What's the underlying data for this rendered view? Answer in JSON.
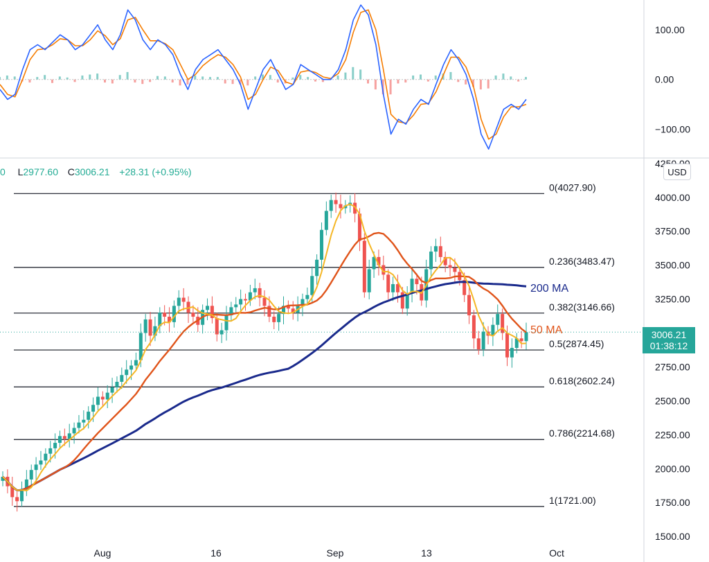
{
  "ohlc_bar": {
    "open_tail": "0",
    "low_label": "L",
    "low_value": "2977.60",
    "close_label": "C",
    "close_value": "3006.21",
    "change": "+28.31",
    "change_pct": "(+0.95%)"
  },
  "currency_button": "USD",
  "last_price": {
    "value": "3006.21",
    "countdown": "01:38:12"
  },
  "colors": {
    "fib_line": "#131722",
    "ma200": "#1a2a8c",
    "ma50": "#e0541a",
    "short_ma": "#f5b625",
    "up": "#26a69a",
    "down": "#ef5350",
    "osc_fast": "#2962ff",
    "osc_slow": "#f57c00",
    "hist_pos": "#26a69a",
    "hist_neg": "#ef5350",
    "grid": "#e0e3eb"
  },
  "chart_data": [
    {
      "type": "line",
      "panel": "oscillator",
      "y_ticks": [
        "100.00",
        "0.00",
        "−100.00"
      ],
      "y_tick_values": [
        100,
        0,
        -100
      ],
      "ylim": [
        -158,
        160
      ],
      "series": [
        {
          "values": [
            -20,
            -40,
            -30,
            20,
            60,
            70,
            60,
            75,
            90,
            80,
            60,
            70,
            90,
            110,
            80,
            60,
            90,
            140,
            120,
            80,
            60,
            80,
            70,
            50,
            10,
            -20,
            20,
            40,
            50,
            60,
            40,
            20,
            -10,
            -60,
            -20,
            20,
            40,
            10,
            -20,
            -10,
            30,
            20,
            10,
            0,
            0,
            20,
            60,
            120,
            150,
            130,
            70,
            -30,
            -110,
            -80,
            -90,
            -60,
            -40,
            -50,
            -10,
            30,
            60,
            40,
            10,
            -40,
            -110,
            -140,
            -100,
            -60,
            -50,
            -60,
            -40
          ]
        },
        {
          "values": [
            -10,
            -30,
            -35,
            0,
            40,
            60,
            62,
            70,
            82,
            80,
            68,
            68,
            80,
            98,
            88,
            70,
            82,
            120,
            125,
            100,
            78,
            78,
            72,
            60,
            30,
            0,
            10,
            28,
            40,
            50,
            45,
            30,
            5,
            -40,
            -30,
            0,
            25,
            18,
            -5,
            -10,
            15,
            18,
            14,
            5,
            2,
            12,
            40,
            95,
            135,
            140,
            100,
            20,
            -70,
            -85,
            -88,
            -72,
            -50,
            -48,
            -25,
            10,
            45,
            45,
            25,
            -15,
            -80,
            -120,
            -110,
            -75,
            -55,
            -55,
            -50
          ]
        },
        {
          "values": [
            5,
            8,
            6,
            -4,
            -6,
            5,
            9,
            -7,
            6,
            4,
            -5,
            8,
            10,
            12,
            -6,
            -8,
            9,
            15,
            -6,
            -9,
            -5,
            7,
            6,
            -6,
            -12,
            -10,
            8,
            6,
            5,
            5,
            -8,
            -9,
            -10,
            -12,
            6,
            10,
            9,
            -6,
            -8,
            4,
            9,
            5,
            -4,
            -5,
            3,
            8,
            14,
            25,
            20,
            -8,
            -20,
            -30,
            -30,
            -8,
            -6,
            8,
            10,
            -4,
            8,
            12,
            15,
            -5,
            -10,
            -15,
            -20,
            -18,
            8,
            12,
            6,
            -4,
            5
          ]
        }
      ]
    },
    {
      "type": "candlestick",
      "panel": "price",
      "x_tick_labels": [
        "Aug",
        "16",
        "Sep",
        "13",
        "Oct"
      ],
      "y_ticks": [
        "4250.00",
        "4000.00",
        "3750.00",
        "3500.00",
        "3250.00",
        "3000.00",
        "2750.00",
        "2500.00",
        "2250.00",
        "2000.00",
        "1750.00",
        "1500.00"
      ],
      "y_tick_values": [
        4250,
        4000,
        3750,
        3500,
        3250,
        3000,
        2750,
        2500,
        2250,
        2000,
        1750,
        1500
      ],
      "ylim": [
        1470,
        4290
      ],
      "closes": [
        1940,
        1870,
        1790,
        1760,
        1850,
        1920,
        1990,
        2030,
        2060,
        2110,
        2150,
        2190,
        2240,
        2220,
        2260,
        2300,
        2340,
        2360,
        2420,
        2470,
        2530,
        2510,
        2560,
        2600,
        2640,
        2690,
        2730,
        2760,
        2800,
        3000,
        3100,
        2980,
        3050,
        3150,
        3120,
        3080,
        3200,
        3260,
        3230,
        3150,
        3120,
        3060,
        3170,
        3200,
        3110,
        2990,
        3020,
        3130,
        3190,
        3210,
        3250,
        3240,
        3300,
        3330,
        3260,
        3200,
        3120,
        3080,
        3140,
        3200,
        3180,
        3150,
        3200,
        3250,
        3280,
        3420,
        3540,
        3760,
        3900,
        3980,
        3950,
        3920,
        3940,
        3960,
        3880,
        3680,
        3300,
        3470,
        3560,
        3500,
        3430,
        3300,
        3360,
        3300,
        3180,
        3290,
        3400,
        3360,
        3240,
        3470,
        3600,
        3640,
        3560,
        3500,
        3480,
        3450,
        3390,
        3280,
        3130,
        2960,
        2880,
        3010,
        2980,
        3060,
        3140,
        3000,
        2820,
        2890,
        2960,
        2940,
        3006
      ],
      "levels": [
        {
          "label": "0(4027.90)",
          "value": 4027.9
        },
        {
          "label": "0.236(3483.47)",
          "value": 3483.47
        },
        {
          "label": "0.382(3146.66)",
          "value": 3146.66
        },
        {
          "label": "0.5(2874.45)",
          "value": 2874.45
        },
        {
          "label": "0.618(2602.24)",
          "value": 2602.24
        },
        {
          "label": "0.786(2214.68)",
          "value": 2214.68
        },
        {
          "label": "1(1721.00)",
          "value": 1721.0
        }
      ],
      "ma_labels": {
        "ma200": "200 MA",
        "ma50": "50 MA"
      },
      "last_price_value": 3006.21
    }
  ]
}
